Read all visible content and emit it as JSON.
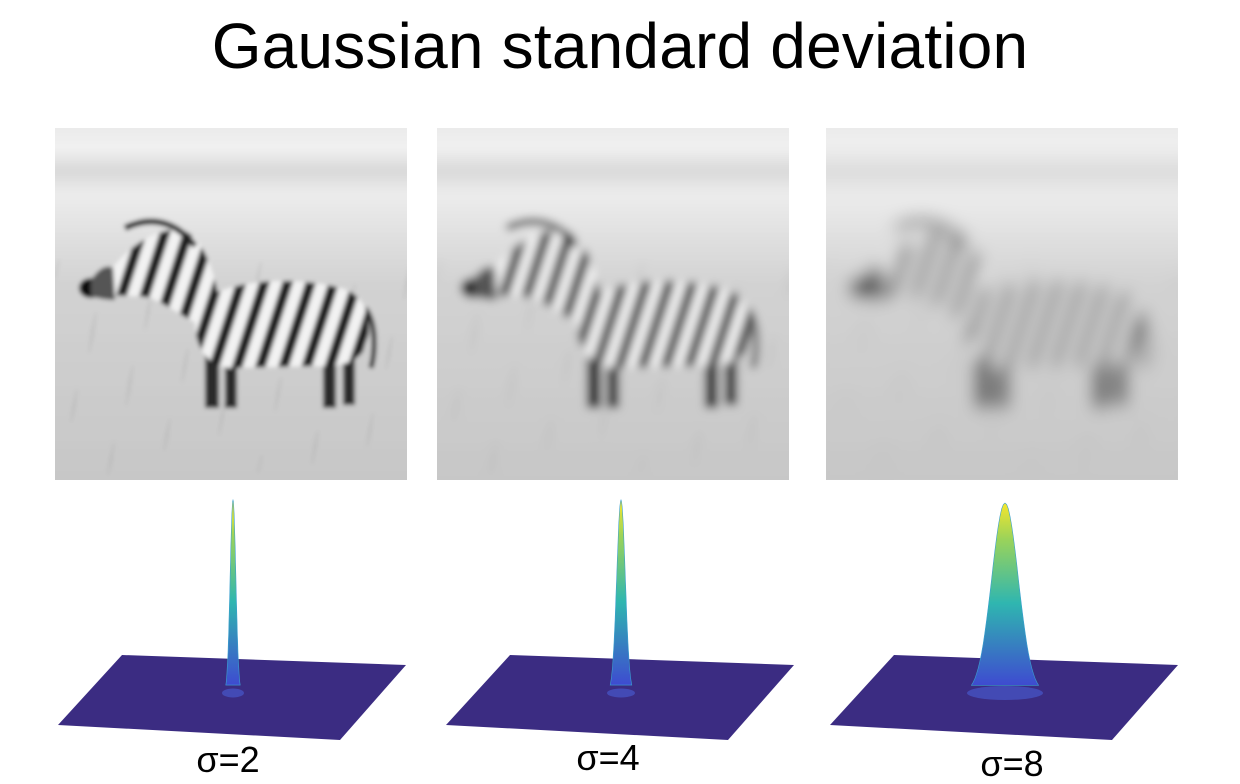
{
  "title": "Gaussian standard deviation",
  "panels": [
    {
      "label": "σ=2",
      "sigma": 2
    },
    {
      "label": "σ=4",
      "sigma": 4
    },
    {
      "label": "σ=8",
      "sigma": 8
    }
  ],
  "colors": {
    "kernel_base": "#3b2c82",
    "kernel_low": "#3e4bd0",
    "kernel_mid": "#2fb6b0",
    "kernel_high": "#f5e62b",
    "grass": "#cfcfcf",
    "sky": "#ececec",
    "zebra_dark": "#1a1a1a",
    "zebra_light": "#f2f2f2"
  }
}
